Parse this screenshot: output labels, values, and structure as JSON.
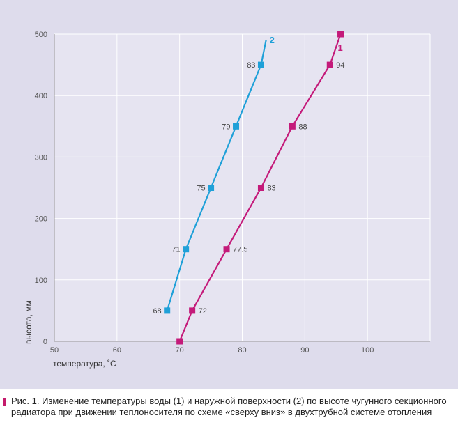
{
  "chart_data": {
    "type": "line",
    "xlabel": "температура, ˚С",
    "ylabel": "высота, мм",
    "xlim": [
      50,
      110
    ],
    "ylim": [
      0,
      500
    ],
    "x_ticks": [
      50,
      60,
      70,
      80,
      90,
      100
    ],
    "y_ticks": [
      0,
      100,
      200,
      300,
      400,
      500
    ],
    "grid": true,
    "series": [
      {
        "name": "1",
        "color": "#c41a7a",
        "points": [
          {
            "x": 70,
            "y": 0,
            "label": ""
          },
          {
            "x": 72,
            "y": 50,
            "label": "72"
          },
          {
            "x": 77.5,
            "y": 150,
            "label": "77.5"
          },
          {
            "x": 83,
            "y": 250,
            "label": "83"
          },
          {
            "x": 88,
            "y": 350,
            "label": "88"
          },
          {
            "x": 94,
            "y": 450,
            "label": "94"
          },
          {
            "x": 95.7,
            "y": 500,
            "label": ""
          }
        ]
      },
      {
        "name": "2",
        "color": "#1fa0d8",
        "points": [
          {
            "x": 68,
            "y": 50,
            "label": "68"
          },
          {
            "x": 71,
            "y": 150,
            "label": "71"
          },
          {
            "x": 75,
            "y": 250,
            "label": "75"
          },
          {
            "x": 79,
            "y": 350,
            "label": "79"
          },
          {
            "x": 83,
            "y": 450,
            "label": "83"
          }
        ],
        "line_extends_to": {
          "x": 83.8,
          "y": 490
        }
      }
    ]
  },
  "caption": {
    "text": "Рис. 1. Изменение температуры воды (1) и наружной поверхности (2) по высоте чугунного секционного радиатора при движении теплоносителя по схеме «сверху вниз» в двухтрубной системе отопления",
    "marker_color": "#c41a6b"
  }
}
